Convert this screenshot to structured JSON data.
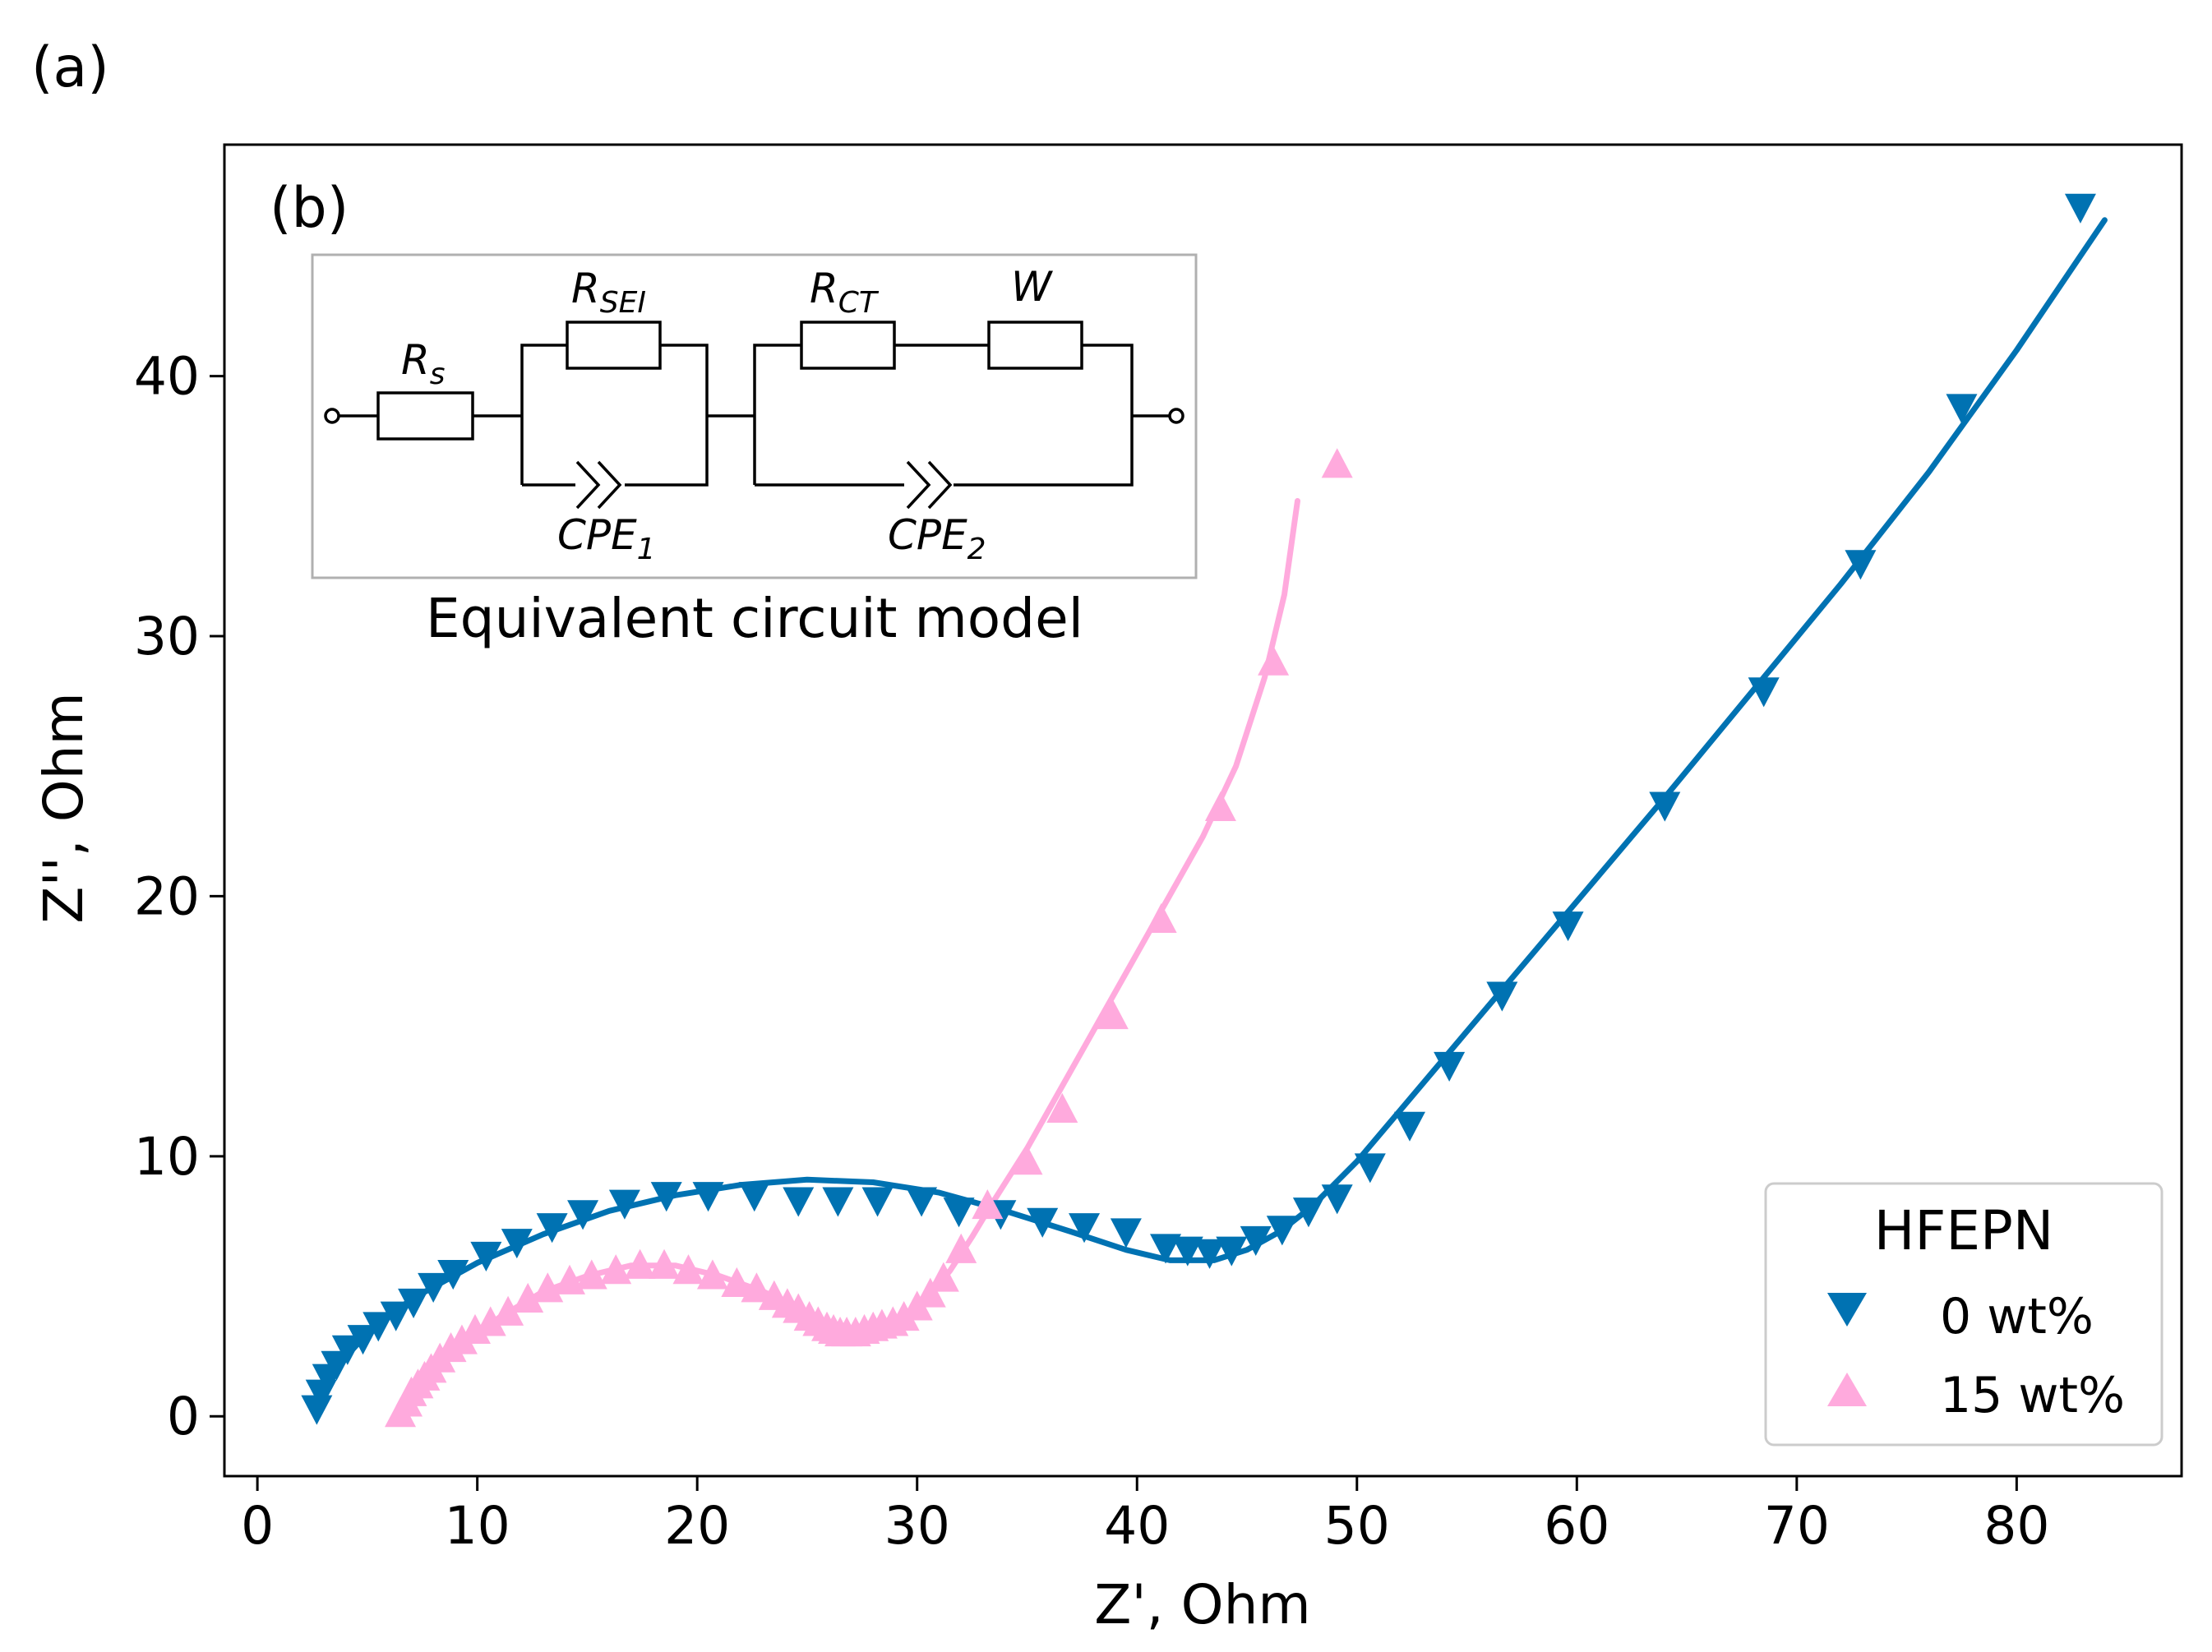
{
  "chart_data": {
    "type": "scatter",
    "panel_labels": [
      "(a)",
      "(b)"
    ],
    "xlabel": "Z', Ohm",
    "ylabel": "Z'', Ohm",
    "xlim": [
      -1.5,
      87.5
    ],
    "ylim": [
      -2.3,
      48.9
    ],
    "xticks": [
      0,
      10,
      20,
      30,
      40,
      50,
      60,
      70,
      80
    ],
    "yticks": [
      0,
      10,
      20,
      30,
      40
    ],
    "grid": false,
    "legend": {
      "title": "HFEPN",
      "placement": "bottom-right",
      "entries": [
        "0 wt%",
        "15 wt%"
      ]
    },
    "inset": {
      "title": "Equivalent circuit model",
      "components": {
        "rs": {
          "base": "R",
          "sub": "s"
        },
        "rsei": {
          "base": "R",
          "sub": "SEI"
        },
        "rct": {
          "base": "R",
          "sub": "CT"
        },
        "w": {
          "base": "W",
          "sub": ""
        },
        "cpe1": {
          "base": "CPE",
          "sub": "1"
        },
        "cpe2": {
          "base": "CPE",
          "sub": "2"
        }
      }
    },
    "series": [
      {
        "name": "0 wt%",
        "color": "#0072b2",
        "marker": "triangle-down",
        "points": [
          [
            2.7,
            0.3
          ],
          [
            2.9,
            0.9
          ],
          [
            3.2,
            1.5
          ],
          [
            3.6,
            2.0
          ],
          [
            4.1,
            2.6
          ],
          [
            4.8,
            3.0
          ],
          [
            5.5,
            3.5
          ],
          [
            6.3,
            3.9
          ],
          [
            7.1,
            4.4
          ],
          [
            8.0,
            5.0
          ],
          [
            8.9,
            5.5
          ],
          [
            10.4,
            6.2
          ],
          [
            11.8,
            6.7
          ],
          [
            13.4,
            7.3
          ],
          [
            14.8,
            7.8
          ],
          [
            16.7,
            8.2
          ],
          [
            18.6,
            8.5
          ],
          [
            20.5,
            8.5
          ],
          [
            22.6,
            8.5
          ],
          [
            24.6,
            8.3
          ],
          [
            26.4,
            8.3
          ],
          [
            28.2,
            8.3
          ],
          [
            30.2,
            8.3
          ],
          [
            31.9,
            7.9
          ],
          [
            33.8,
            7.8
          ],
          [
            35.7,
            7.5
          ],
          [
            37.6,
            7.3
          ],
          [
            39.5,
            7.1
          ],
          [
            41.3,
            6.5
          ],
          [
            42.3,
            6.4
          ],
          [
            43.3,
            6.3
          ],
          [
            44.3,
            6.4
          ],
          [
            45.4,
            6.8
          ],
          [
            46.6,
            7.2
          ],
          [
            47.8,
            7.9
          ],
          [
            49.1,
            8.4
          ],
          [
            50.6,
            9.6
          ],
          [
            52.4,
            11.2
          ],
          [
            54.2,
            13.5
          ],
          [
            56.6,
            16.2
          ],
          [
            59.6,
            18.9
          ],
          [
            64.0,
            23.5
          ],
          [
            68.5,
            27.9
          ],
          [
            72.9,
            32.8
          ],
          [
            77.5,
            38.8
          ],
          [
            82.9,
            46.5
          ]
        ]
      },
      {
        "name": "15 wt%",
        "color": "#ffaadd",
        "marker": "triangle-up",
        "points": [
          [
            6.5,
            0.1
          ],
          [
            6.8,
            0.5
          ],
          [
            7.0,
            0.9
          ],
          [
            7.3,
            1.2
          ],
          [
            7.6,
            1.5
          ],
          [
            7.9,
            1.8
          ],
          [
            8.3,
            2.2
          ],
          [
            8.8,
            2.6
          ],
          [
            9.3,
            2.9
          ],
          [
            9.9,
            3.3
          ],
          [
            10.6,
            3.6
          ],
          [
            11.4,
            4.0
          ],
          [
            12.3,
            4.5
          ],
          [
            13.2,
            4.9
          ],
          [
            14.2,
            5.2
          ],
          [
            15.2,
            5.4
          ],
          [
            16.3,
            5.6
          ],
          [
            17.4,
            5.8
          ],
          [
            18.5,
            5.8
          ],
          [
            19.6,
            5.6
          ],
          [
            20.7,
            5.4
          ],
          [
            21.8,
            5.1
          ],
          [
            22.7,
            4.9
          ],
          [
            23.5,
            4.6
          ],
          [
            24.1,
            4.3
          ],
          [
            24.6,
            4.1
          ],
          [
            25.1,
            3.8
          ],
          [
            25.5,
            3.6
          ],
          [
            25.9,
            3.4
          ],
          [
            26.2,
            3.3
          ],
          [
            26.5,
            3.2
          ],
          [
            26.8,
            3.2
          ],
          [
            27.2,
            3.2
          ],
          [
            27.6,
            3.3
          ],
          [
            28.0,
            3.4
          ],
          [
            28.4,
            3.5
          ],
          [
            28.9,
            3.6
          ],
          [
            29.4,
            3.8
          ],
          [
            30.0,
            4.2
          ],
          [
            30.6,
            4.7
          ],
          [
            31.2,
            5.3
          ],
          [
            32.0,
            6.4
          ],
          [
            33.2,
            8.1
          ],
          [
            35.0,
            9.8
          ],
          [
            36.6,
            11.8
          ],
          [
            38.9,
            15.4
          ],
          [
            41.1,
            19.1
          ],
          [
            43.8,
            23.4
          ],
          [
            46.2,
            29.0
          ],
          [
            49.1,
            36.6
          ]
        ]
      }
    ],
    "fit_curves": [
      {
        "color": "#0072b2",
        "points": [
          [
            2.7,
            0.3
          ],
          [
            3.5,
            1.8
          ],
          [
            5.0,
            3.2
          ],
          [
            7.0,
            4.5
          ],
          [
            10.0,
            5.9
          ],
          [
            13.0,
            7.0
          ],
          [
            16.0,
            7.9
          ],
          [
            19.0,
            8.5
          ],
          [
            22.0,
            8.9
          ],
          [
            25.0,
            9.1
          ],
          [
            28.0,
            9.0
          ],
          [
            31.0,
            8.6
          ],
          [
            34.0,
            7.9
          ],
          [
            37.0,
            7.1
          ],
          [
            39.5,
            6.4
          ],
          [
            41.5,
            6.0
          ],
          [
            43.5,
            6.0
          ],
          [
            45.0,
            6.4
          ],
          [
            46.5,
            7.1
          ],
          [
            48.0,
            8.1
          ],
          [
            50.0,
            9.8
          ],
          [
            52.0,
            11.8
          ],
          [
            55.0,
            14.8
          ],
          [
            58.0,
            17.8
          ],
          [
            61.0,
            20.8
          ],
          [
            64.0,
            23.8
          ],
          [
            68.0,
            27.9
          ],
          [
            72.0,
            32.0
          ],
          [
            76.0,
            36.3
          ],
          [
            80.0,
            41.0
          ],
          [
            84.0,
            46.0
          ]
        ]
      },
      {
        "color": "#ffaadd",
        "points": [
          [
            6.5,
            0.1
          ],
          [
            7.5,
            1.2
          ],
          [
            9.0,
            2.5
          ],
          [
            11.0,
            3.8
          ],
          [
            13.0,
            4.8
          ],
          [
            15.0,
            5.4
          ],
          [
            17.0,
            5.8
          ],
          [
            19.0,
            5.8
          ],
          [
            21.0,
            5.4
          ],
          [
            23.0,
            4.8
          ],
          [
            24.5,
            4.2
          ],
          [
            25.5,
            3.7
          ],
          [
            26.5,
            3.3
          ],
          [
            27.5,
            3.3
          ],
          [
            28.5,
            3.5
          ],
          [
            29.5,
            3.9
          ],
          [
            30.5,
            4.6
          ],
          [
            31.5,
            5.6
          ],
          [
            32.5,
            6.9
          ],
          [
            33.5,
            8.3
          ],
          [
            35.0,
            10.3
          ],
          [
            37.0,
            13.3
          ],
          [
            39.0,
            16.3
          ],
          [
            41.0,
            19.3
          ],
          [
            43.0,
            22.3
          ],
          [
            44.5,
            25.0
          ],
          [
            45.8,
            28.4
          ],
          [
            46.7,
            31.6
          ],
          [
            47.3,
            35.2
          ]
        ]
      }
    ]
  }
}
